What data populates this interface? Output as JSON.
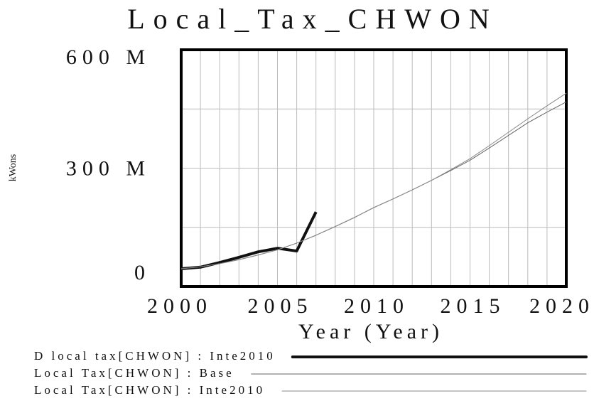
{
  "chart_data": {
    "type": "line",
    "title": "Local_Tax_CHWON",
    "x_label": "Year (Year)",
    "y_label": "kWons",
    "x": [
      2000,
      2001,
      2002,
      2003,
      2004,
      2005,
      2006,
      2007,
      2008,
      2009,
      2010,
      2011,
      2012,
      2013,
      2014,
      2015,
      2016,
      2017,
      2018,
      2019,
      2020
    ],
    "series": [
      {
        "name": "D local tax[CHWON] : Inte2010",
        "color": "#111111",
        "values": [
          45000000,
          49000000,
          61000000,
          74000000,
          88000000,
          97000000,
          90000000,
          189000000,
          null,
          null,
          null,
          null,
          null,
          null,
          null,
          null,
          null,
          null,
          null,
          null,
          null
        ]
      },
      {
        "name": "Local Tax[CHWON] : Base",
        "color": "#666666",
        "values": [
          45000000,
          50000000,
          58000000,
          68000000,
          80000000,
          93000000,
          110000000,
          130000000,
          152000000,
          175000000,
          200000000,
          222000000,
          245000000,
          269000000,
          294000000,
          320000000,
          351000000,
          383000000,
          415000000,
          442000000,
          468000000
        ]
      },
      {
        "name": "Local Tax[CHWON] : Inte2010",
        "color": "#888888",
        "values": [
          45000000,
          50000000,
          58000000,
          68000000,
          80000000,
          93000000,
          110000000,
          130000000,
          152000000,
          175000000,
          200000000,
          222000000,
          245000000,
          269000000,
          296000000,
          324000000,
          357000000,
          391000000,
          425000000,
          458000000,
          490000000
        ]
      }
    ],
    "xlim": [
      2000,
      2020
    ],
    "xticks": [
      2000,
      2005,
      2010,
      2015,
      2020
    ],
    "ylim": [
      0,
      600000000
    ],
    "yticks": [
      {
        "value": 0,
        "label": "0"
      },
      {
        "value": 300000000,
        "label": "300 M"
      },
      {
        "value": 600000000,
        "label": "600 M"
      }
    ],
    "grid": true
  }
}
